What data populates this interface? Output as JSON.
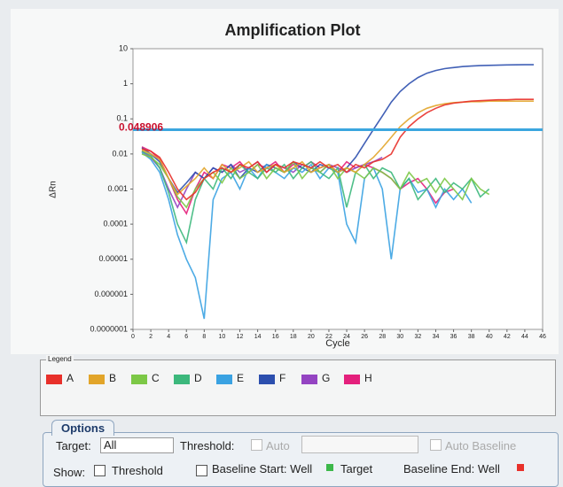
{
  "chart_data": {
    "type": "line",
    "title": "Amplification Plot",
    "x_label": "Cycle",
    "y_label": "ΔRn",
    "log_y": true,
    "threshold": 0.048906,
    "threshold_color": "#3ba6df",
    "x": [
      1,
      2,
      3,
      4,
      5,
      6,
      7,
      8,
      9,
      10,
      11,
      12,
      13,
      14,
      15,
      16,
      17,
      18,
      19,
      20,
      21,
      22,
      23,
      24,
      25,
      26,
      27,
      28,
      29,
      30,
      31,
      32,
      33,
      34,
      35,
      36,
      37,
      38,
      39,
      40,
      41,
      42,
      43,
      44,
      45
    ],
    "xlim": [
      0,
      46
    ],
    "xticks": [
      0,
      2,
      4,
      6,
      8,
      10,
      12,
      14,
      16,
      18,
      20,
      22,
      24,
      26,
      28,
      30,
      32,
      34,
      36,
      38,
      40,
      42,
      44,
      46
    ],
    "ylim": [
      1e-07,
      10
    ],
    "yticks": [
      {
        "value": 1e-07,
        "label": "0.0000001"
      },
      1e-06,
      1e-05,
      0.0001,
      0.001,
      0.01,
      0.1,
      1,
      10
    ],
    "series": [
      {
        "name": "A",
        "color": "#e8302a",
        "values": [
          0.014,
          0.012,
          0.008,
          0.003,
          0.001,
          0.0005,
          0.0008,
          0.002,
          0.003,
          0.004,
          0.003,
          0.005,
          0.004,
          0.006,
          0.003,
          0.005,
          0.004,
          0.006,
          0.005,
          0.004,
          0.006,
          0.004,
          0.005,
          0.003,
          0.005,
          0.004,
          0.006,
          0.007,
          0.01,
          0.03,
          0.06,
          0.1,
          0.15,
          0.2,
          0.25,
          0.28,
          0.3,
          0.32,
          0.33,
          0.34,
          0.35,
          0.35,
          0.36,
          0.36,
          0.36
        ]
      },
      {
        "name": "B",
        "color": "#e2a52a",
        "values": [
          0.013,
          0.01,
          0.007,
          0.002,
          0.0007,
          0.0012,
          0.002,
          0.004,
          0.002,
          0.005,
          0.003,
          0.004,
          0.006,
          0.003,
          0.004,
          0.005,
          0.003,
          0.004,
          0.006,
          0.003,
          0.004,
          0.005,
          0.003,
          0.004,
          0.003,
          0.005,
          0.008,
          0.015,
          0.03,
          0.06,
          0.1,
          0.15,
          0.2,
          0.24,
          0.27,
          0.29,
          0.3,
          0.31,
          0.31,
          0.32,
          0.32,
          0.32,
          0.32,
          0.32,
          0.32
        ]
      },
      {
        "name": "C",
        "color": "#7cc846",
        "values": [
          0.01,
          0.008,
          0.005,
          0.002,
          0.0006,
          0.0003,
          0.001,
          0.002,
          0.003,
          0.0015,
          0.004,
          0.002,
          0.003,
          0.005,
          0.002,
          0.004,
          0.003,
          0.006,
          0.002,
          0.004,
          0.003,
          0.005,
          0.002,
          0.004,
          0.003,
          0.002,
          0.004,
          0.003,
          0.002,
          0.001,
          0.003,
          0.0015,
          0.002,
          0.0008,
          0.002,
          0.001,
          0.0005,
          0.002,
          0.001,
          0.0007,
          null,
          null,
          null,
          null,
          null
        ]
      },
      {
        "name": "D",
        "color": "#3cb87c",
        "values": [
          0.012,
          0.009,
          0.004,
          0.0008,
          0.0001,
          3e-05,
          0.0005,
          0.002,
          0.001,
          0.004,
          0.002,
          0.005,
          0.003,
          0.002,
          0.004,
          0.003,
          0.005,
          0.002,
          0.004,
          0.006,
          0.003,
          0.002,
          0.004,
          0.0003,
          0.003,
          0.005,
          0.002,
          0.004,
          0.003,
          0.001,
          0.002,
          0.0005,
          0.001,
          0.002,
          0.0008,
          0.0015,
          0.001,
          0.002,
          0.0006,
          0.001,
          null,
          null,
          null,
          null,
          null
        ]
      },
      {
        "name": "E",
        "color": "#3aa2e2",
        "values": [
          0.011,
          0.007,
          0.003,
          0.0005,
          5e-05,
          1e-05,
          3e-06,
          2e-07,
          0.0005,
          0.002,
          0.003,
          0.001,
          0.004,
          0.002,
          0.005,
          0.003,
          0.002,
          0.004,
          0.003,
          0.005,
          0.002,
          0.004,
          0.003,
          0.0001,
          3e-05,
          0.002,
          0.004,
          0.001,
          1e-05,
          0.001,
          0.002,
          0.0008,
          0.001,
          0.0003,
          0.001,
          0.0005,
          0.001,
          0.0004,
          null,
          null,
          null,
          null,
          null,
          null,
          null
        ]
      },
      {
        "name": "F",
        "color": "#2c4fae",
        "values": [
          0.015,
          0.01,
          0.006,
          0.002,
          0.0008,
          0.0015,
          0.003,
          0.002,
          0.004,
          0.003,
          0.005,
          0.002,
          0.004,
          0.003,
          0.005,
          0.004,
          0.003,
          0.006,
          0.004,
          0.003,
          0.005,
          0.004,
          0.003,
          0.004,
          0.008,
          0.02,
          0.05,
          0.12,
          0.3,
          0.6,
          1.0,
          1.5,
          2.0,
          2.4,
          2.7,
          2.9,
          3.1,
          3.2,
          3.3,
          3.35,
          3.4,
          3.45,
          3.48,
          3.5,
          3.5
        ]
      },
      {
        "name": "G",
        "color": "#9444c2",
        "values": [
          0.012,
          0.008,
          0.004,
          0.001,
          0.0003,
          0.001,
          0.003,
          0.002,
          0.004,
          0.003,
          0.005,
          0.003,
          0.004,
          0.006,
          0.003,
          0.005,
          0.004,
          0.003,
          0.005,
          0.004,
          0.003,
          0.005,
          0.004,
          0.003,
          0.004,
          0.005,
          0.006,
          0.008,
          null,
          null,
          null,
          null,
          null,
          null,
          null,
          null,
          null,
          null,
          null,
          null,
          null,
          null,
          null,
          null,
          null
        ]
      },
      {
        "name": "H",
        "color": "#e4207c",
        "values": [
          0.016,
          0.012,
          0.007,
          0.002,
          0.0005,
          0.0002,
          0.001,
          0.003,
          0.002,
          0.005,
          0.004,
          0.006,
          0.003,
          0.005,
          0.004,
          0.006,
          0.003,
          0.005,
          0.004,
          0.006,
          0.004,
          0.005,
          0.003,
          0.006,
          0.004,
          0.005,
          0.004,
          0.003,
          0.002,
          0.001,
          0.0015,
          0.002,
          0.001,
          0.0004,
          0.0008,
          0.001,
          null,
          null,
          null,
          null,
          null,
          null,
          null,
          null,
          null
        ]
      }
    ]
  },
  "ui": {
    "legend_title": "Legend",
    "options_tab": "Options",
    "target_label": "Target:",
    "target_value": "All",
    "threshold_label": "Threshold:",
    "auto": "Auto",
    "auto_baseline": "Auto Baseline",
    "show_label": "Show:",
    "show_threshold": "Threshold",
    "baseline_start": "Baseline Start: Well",
    "show_target": "Target",
    "baseline_end": "Baseline End: Well"
  }
}
